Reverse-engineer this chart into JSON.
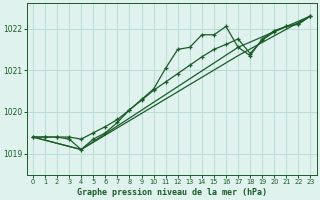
{
  "bg_color": "#dff2ee",
  "grid_color": "#b8ddd6",
  "line_color": "#1a5c28",
  "title": "Graphe pression niveau de la mer (hPa)",
  "title_color": "#1a5c28",
  "xlim": [
    -0.5,
    23.5
  ],
  "ylim": [
    1018.5,
    1022.6
  ],
  "yticks": [
    1019,
    1020,
    1021,
    1022
  ],
  "xticks": [
    0,
    1,
    2,
    3,
    4,
    5,
    6,
    7,
    8,
    9,
    10,
    11,
    12,
    13,
    14,
    15,
    16,
    17,
    18,
    19,
    20,
    21,
    22,
    23
  ],
  "line1_x": [
    0,
    1,
    2,
    3,
    4,
    5,
    6,
    7,
    8,
    9,
    10,
    11,
    12,
    13,
    14,
    15,
    16,
    17,
    18,
    19,
    20,
    21,
    22,
    23
  ],
  "line1_y": [
    1019.4,
    1019.4,
    1019.4,
    1019.35,
    1019.1,
    1019.35,
    1019.5,
    1019.75,
    1020.05,
    1020.3,
    1020.55,
    1021.05,
    1021.5,
    1021.55,
    1021.85,
    1021.85,
    1022.05,
    1021.55,
    1021.35,
    1021.75,
    1021.95,
    1022.05,
    1022.1,
    1022.3
  ],
  "line2_x": [
    0,
    1,
    2,
    3,
    4,
    5,
    6,
    7,
    8,
    9,
    10,
    11,
    12,
    13,
    14,
    15,
    16,
    17,
    18,
    19,
    20,
    21,
    22,
    23
  ],
  "line2_y": [
    1019.4,
    1019.4,
    1019.4,
    1019.4,
    1019.35,
    1019.5,
    1019.65,
    1019.82,
    1020.05,
    1020.28,
    1020.52,
    1020.72,
    1020.92,
    1021.12,
    1021.32,
    1021.5,
    1021.62,
    1021.75,
    1021.4,
    1021.72,
    1021.92,
    1022.05,
    1022.12,
    1022.3
  ],
  "line3_x": [
    0,
    4,
    17,
    23
  ],
  "line3_y": [
    1019.4,
    1019.1,
    1021.55,
    1022.3
  ],
  "line4_x": [
    0,
    4,
    17,
    23
  ],
  "line4_y": [
    1019.4,
    1019.1,
    1021.35,
    1022.3
  ]
}
